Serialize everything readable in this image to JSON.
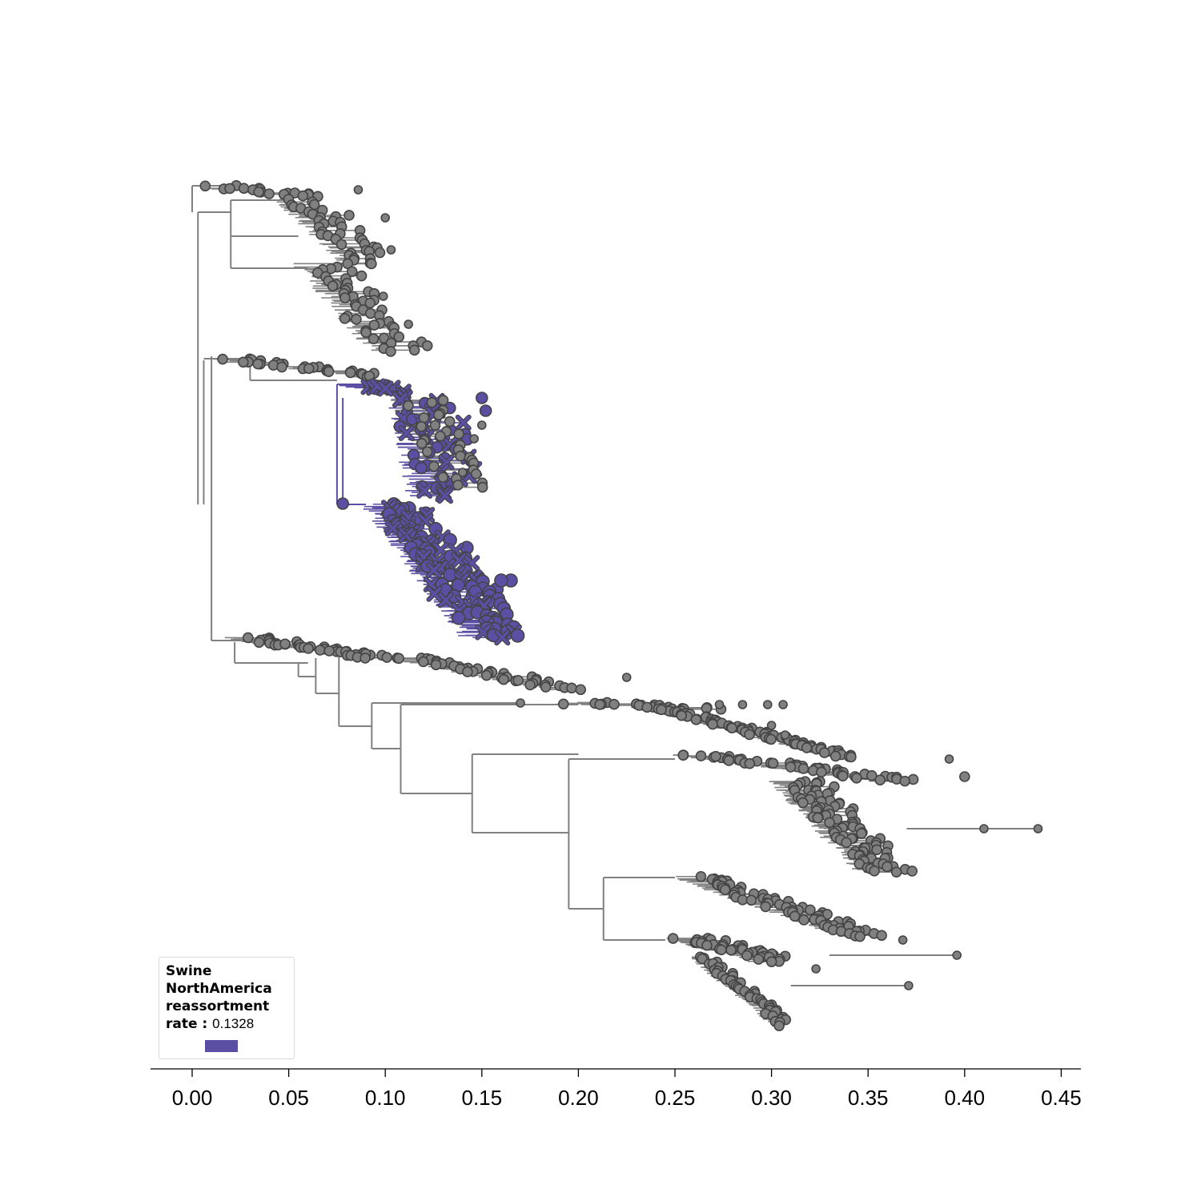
{
  "legend": {
    "lines": [
      "Swine",
      "NorthAmerica",
      "reassortment"
    ],
    "rate_label": "rate :",
    "rate_value": "0.1328",
    "swatch_color": "#5b4fa4"
  },
  "axis": {
    "ticks": [
      "0.00",
      "0.05",
      "0.10",
      "0.15",
      "0.20",
      "0.25",
      "0.30",
      "0.35",
      "0.40",
      "0.45"
    ],
    "tick_values": [
      0,
      0.05,
      0.1,
      0.15,
      0.2,
      0.25,
      0.3,
      0.35,
      0.4,
      0.45
    ],
    "domain": [
      -0.02,
      0.46
    ]
  },
  "colors": {
    "background_lineage": "#808080",
    "highlighted_lineage": "#5b4fa4",
    "node_outline": "#444444"
  },
  "chart_data": {
    "type": "phylogenetic-tree",
    "highlighted_clade": "Swine NorthAmerica reassortment",
    "reassortment_rate": 0.1328,
    "divergence_range": [
      0,
      0.44
    ],
    "clades": [
      {
        "group": "background",
        "root": 0.003,
        "tip_min": 0.003,
        "tip_max": 0.115
      },
      {
        "group": "background",
        "root": 0.006,
        "tip_min": 0.007,
        "tip_max": 0.1
      },
      {
        "group": "highlighted",
        "root": 0.075,
        "tip_min": 0.078,
        "tip_max": 0.166
      },
      {
        "group": "background",
        "root": 0.01,
        "tip_min": 0.02,
        "tip_max": 0.225
      },
      {
        "group": "background",
        "root": 0.145,
        "tip_min": 0.17,
        "tip_max": 0.4
      },
      {
        "group": "background",
        "root": 0.195,
        "tip_min": 0.25,
        "tip_max": 0.438
      },
      {
        "group": "background",
        "root": 0.213,
        "tip_min": 0.24,
        "tip_max": 0.397
      }
    ]
  }
}
